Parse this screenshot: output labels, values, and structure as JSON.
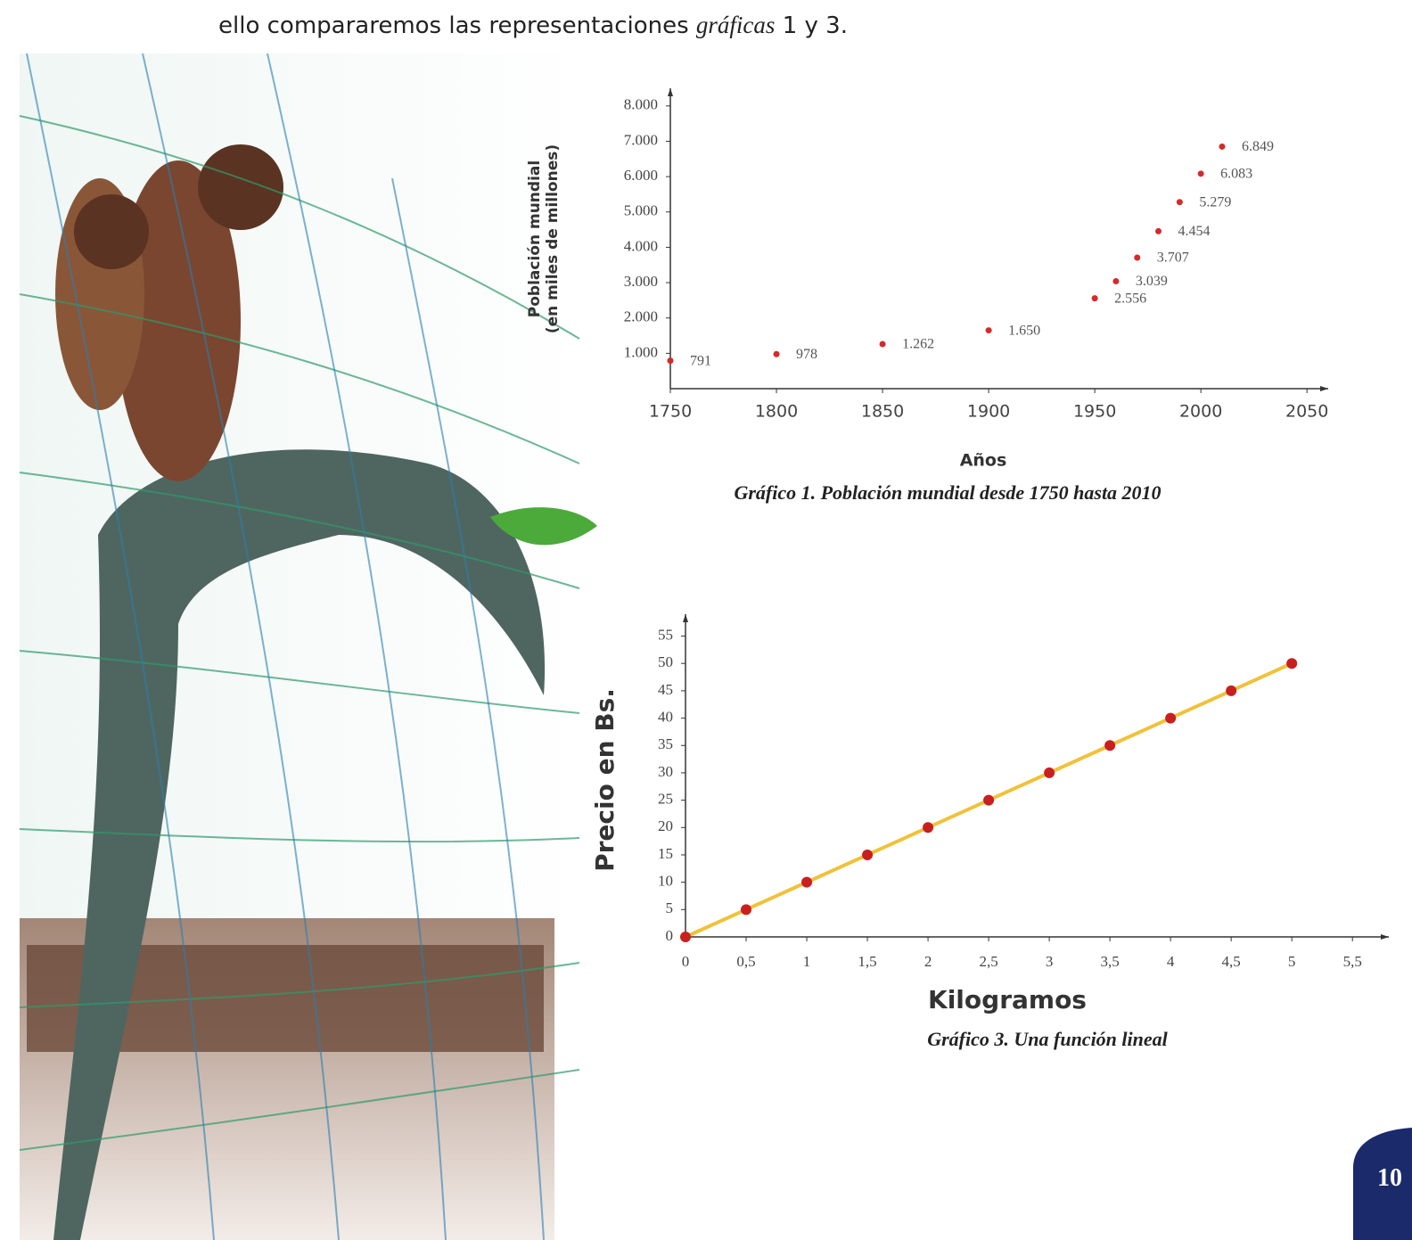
{
  "text": {
    "parts": [
      "ello compararemos las representaciones ",
      "gráficas",
      " 1 y 3."
    ]
  },
  "page_number": "10",
  "chart_data": [
    {
      "type": "scatter",
      "caption": "Gráfico 1. Población mundial desde 1750 hasta 2010",
      "x_label": "Años",
      "y_label": [
        "Población mundial",
        "(en miles de millones)"
      ],
      "x": [
        1750,
        1800,
        1850,
        1900,
        1950,
        1960,
        1970,
        1980,
        1990,
        2000,
        2010
      ],
      "values": [
        791,
        978,
        1262,
        1650,
        2556,
        3039,
        3707,
        4454,
        5279,
        6083,
        6849
      ],
      "value_labels": [
        "791",
        "978",
        "1.262",
        "1.650",
        "2.556",
        "3.039",
        "3.707",
        "4.454",
        "5.279",
        "6.083",
        "6.849"
      ],
      "color": "#d42a2a",
      "xlim": [
        1750,
        2060
      ],
      "ylim": [
        0,
        8500
      ],
      "xticks": [
        1750,
        1800,
        1850,
        1900,
        1950,
        2000,
        2050
      ],
      "yticks": [
        {
          "value": 1000,
          "label": "1.000"
        },
        {
          "value": 2000,
          "label": "2.000"
        },
        {
          "value": 3000,
          "label": "3.000"
        },
        {
          "value": 4000,
          "label": "4.000"
        },
        {
          "value": 5000,
          "label": "5.000"
        },
        {
          "value": 6000,
          "label": "6.000"
        },
        {
          "value": 7000,
          "label": "7.000"
        },
        {
          "value": 8000,
          "label": "8.000"
        }
      ]
    },
    {
      "type": "line",
      "caption": "Gráfico 3. Una función lineal",
      "x_label": "Kilogramos",
      "y_label": [
        "Precio en Bs."
      ],
      "x": [
        0,
        0.5,
        1,
        1.5,
        2,
        2.5,
        3,
        3.5,
        4,
        4.5,
        5
      ],
      "values": [
        0,
        5,
        10,
        15,
        20,
        25,
        30,
        35,
        40,
        45,
        50
      ],
      "color": "#f0c23a",
      "marker_color": "#c8201e",
      "xlim": [
        0,
        5.8
      ],
      "ylim": [
        0,
        59
      ],
      "xticks": [
        0,
        {
          "value": 0.5,
          "label": "0,5"
        },
        1,
        {
          "value": 1.5,
          "label": "1,5"
        },
        2,
        {
          "value": 2.5,
          "label": "2,5"
        },
        3,
        {
          "value": 3.5,
          "label": "3,5"
        },
        4,
        {
          "value": 4.5,
          "label": "4,5"
        },
        5,
        {
          "value": 5.5,
          "label": "5,5"
        }
      ],
      "yticks": [
        0,
        5,
        10,
        15,
        20,
        25,
        30,
        35,
        40,
        45,
        50,
        55
      ]
    }
  ]
}
